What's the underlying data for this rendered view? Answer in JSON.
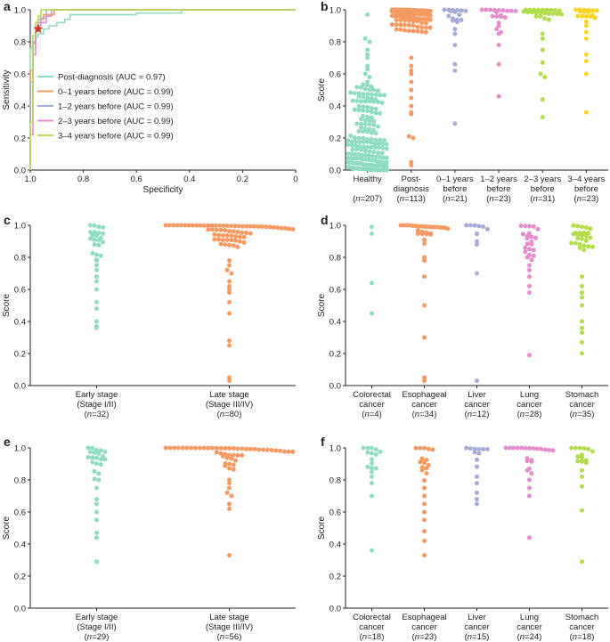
{
  "colors": {
    "teal": "#8fdcc0",
    "orange": "#f59a62",
    "lavender": "#a7acd6",
    "pink": "#e58ecd",
    "lime": "#b3dc4c",
    "yellow": "#fbd424",
    "star": "#d03a2a"
  },
  "chart_data": [
    {
      "id": "a",
      "panel_label": "a",
      "type": "line",
      "xlabel": "Specificity",
      "ylabel": "Sensitivity",
      "xlim": [
        1.0,
        0.0
      ],
      "ylim": [
        0.0,
        1.0
      ],
      "xticks": [
        "1.0",
        "0.8",
        "0.6",
        "0.4",
        "0.2",
        "0"
      ],
      "yticks": [
        "0.0",
        "0.2",
        "0.4",
        "0.6",
        "0.8",
        "1.0"
      ],
      "marker": {
        "x": 0.97,
        "y": 0.88,
        "shape": "star"
      },
      "series": [
        {
          "name": "Post-diagnosis (AUC = 0.97)",
          "color": "teal",
          "points": [
            [
              1,
              0
            ],
            [
              1,
              0.76
            ],
            [
              0.99,
              0.77
            ],
            [
              0.99,
              0.8
            ],
            [
              0.98,
              0.8
            ],
            [
              0.98,
              0.83
            ],
            [
              0.97,
              0.83
            ],
            [
              0.97,
              0.85
            ],
            [
              0.95,
              0.85
            ],
            [
              0.95,
              0.88
            ],
            [
              0.93,
              0.88
            ],
            [
              0.93,
              0.9
            ],
            [
              0.9,
              0.9
            ],
            [
              0.9,
              0.92
            ],
            [
              0.87,
              0.92
            ],
            [
              0.87,
              0.94
            ],
            [
              0.85,
              0.94
            ],
            [
              0.85,
              0.97
            ],
            [
              0.6,
              0.97
            ],
            [
              0.6,
              0.98
            ],
            [
              0.43,
              0.98
            ],
            [
              0.43,
              1
            ],
            [
              0,
              1
            ]
          ]
        },
        {
          "name": "0–1 years before (AUC = 0.99)",
          "color": "orange",
          "points": [
            [
              1,
              0
            ],
            [
              1,
              0.62
            ],
            [
              0.99,
              0.62
            ],
            [
              0.99,
              0.79
            ],
            [
              0.98,
              0.79
            ],
            [
              0.98,
              0.88
            ],
            [
              0.97,
              0.88
            ],
            [
              0.97,
              0.94
            ],
            [
              0.95,
              0.94
            ],
            [
              0.95,
              0.97
            ],
            [
              0.91,
              0.97
            ],
            [
              0.91,
              1
            ],
            [
              0,
              1
            ]
          ]
        },
        {
          "name": "1–2 years before (AUC = 0.99)",
          "color": "lavender",
          "points": [
            [
              1,
              0
            ],
            [
              1,
              0.55
            ],
            [
              0.99,
              0.55
            ],
            [
              0.99,
              0.8
            ],
            [
              0.98,
              0.8
            ],
            [
              0.98,
              0.9
            ],
            [
              0.96,
              0.9
            ],
            [
              0.96,
              0.95
            ],
            [
              0.94,
              0.95
            ],
            [
              0.94,
              1
            ],
            [
              0,
              1
            ]
          ]
        },
        {
          "name": "2–3 years before (AUC = 0.99)",
          "color": "pink",
          "points": [
            [
              1,
              0
            ],
            [
              1,
              0.22
            ],
            [
              0.99,
              0.22
            ],
            [
              0.99,
              0.72
            ],
            [
              0.98,
              0.72
            ],
            [
              0.98,
              0.88
            ],
            [
              0.97,
              0.88
            ],
            [
              0.97,
              0.92
            ],
            [
              0.94,
              0.92
            ],
            [
              0.94,
              0.96
            ],
            [
              0.92,
              0.96
            ],
            [
              0.92,
              1
            ],
            [
              0,
              1
            ]
          ]
        },
        {
          "name": "3–4 years before (AUC = 0.99)",
          "color": "lime",
          "points": [
            [
              1,
              0
            ],
            [
              1,
              0.3
            ],
            [
              0.99,
              0.3
            ],
            [
              0.99,
              0.84
            ],
            [
              0.98,
              0.84
            ],
            [
              0.98,
              0.92
            ],
            [
              0.97,
              0.92
            ],
            [
              0.97,
              0.96
            ],
            [
              0.96,
              0.96
            ],
            [
              0.96,
              1
            ],
            [
              0,
              1
            ]
          ]
        }
      ]
    },
    {
      "id": "b",
      "panel_label": "b",
      "type": "scatter",
      "ylabel": "Score",
      "ylim": [
        0,
        1.0
      ],
      "yticks": [
        "0.0",
        "0.2",
        "0.4",
        "0.6",
        "0.8",
        "1.0"
      ],
      "groups": [
        {
          "label1": "Healthy",
          "label2": "",
          "n": "(n=207)",
          "color": "teal",
          "count": 207,
          "dist": "low",
          "lows": [
            0.97,
            0.82,
            0.8,
            0.75,
            0.72,
            0.7,
            0.65,
            0.63,
            0.6,
            0.58,
            0.55,
            0.52,
            0.5,
            0.48,
            0.45,
            0.42
          ]
        },
        {
          "label1": "Post-",
          "label2": "diagnosis",
          "n": "(n=113)",
          "color": "orange",
          "count": 113,
          "dist": "high",
          "lows": [
            0.03,
            0.05,
            0.2,
            0.21,
            0.35,
            0.36,
            0.4,
            0.45,
            0.5,
            0.55,
            0.6,
            0.62,
            0.65,
            0.7
          ]
        },
        {
          "label1": "0–1 years",
          "label2": "before",
          "n": "(n=21)",
          "color": "lavender",
          "count": 21,
          "dist": "high",
          "lows": [
            0.29,
            0.62,
            0.66,
            0.78,
            0.85,
            0.88
          ]
        },
        {
          "label1": "1–2 years",
          "label2": "before",
          "n": "(n=23)",
          "color": "pink",
          "count": 23,
          "dist": "high",
          "lows": [
            0.46,
            0.66,
            0.78,
            0.85,
            0.88,
            0.9
          ]
        },
        {
          "label1": "2–3 years",
          "label2": "before",
          "n": "(n=31)",
          "color": "lime",
          "count": 31,
          "dist": "high",
          "lows": [
            0.33,
            0.44,
            0.58,
            0.6,
            0.67,
            0.75,
            0.82,
            0.85
          ]
        },
        {
          "label1": "3–4 years",
          "label2": "before",
          "n": "(n=23)",
          "color": "yellow",
          "count": 23,
          "dist": "high",
          "lows": [
            0.36,
            0.6,
            0.68,
            0.72,
            0.82,
            0.86
          ]
        }
      ]
    },
    {
      "id": "c",
      "panel_label": "c",
      "type": "scatter",
      "ylabel": "Score",
      "ylim": [
        0,
        1.0
      ],
      "yticks": [
        "0.0",
        "0.2",
        "0.4",
        "0.6",
        "0.8",
        "1.0"
      ],
      "groups": [
        {
          "label1": "Early stage",
          "label2": "(Stage I/II)",
          "n": "(n=32)",
          "color": "teal",
          "count": 32,
          "dist": "mid",
          "lows": [
            0.36,
            0.37,
            0.4,
            0.48,
            0.52,
            0.6,
            0.65,
            0.68,
            0.72,
            0.75,
            0.78
          ]
        },
        {
          "label1": "Late stage",
          "label2": "(Stage III/IV)",
          "n": "(n=80)",
          "color": "orange",
          "count": 80,
          "dist": "high",
          "lows": [
            0.03,
            0.05,
            0.25,
            0.28,
            0.45,
            0.52,
            0.58,
            0.6,
            0.62,
            0.65,
            0.7,
            0.72,
            0.75,
            0.78
          ]
        }
      ]
    },
    {
      "id": "d",
      "panel_label": "d",
      "type": "scatter",
      "ylabel": "Score",
      "ylim": [
        0,
        1.0
      ],
      "yticks": [
        "0.0",
        "0.2",
        "0.4",
        "0.6",
        "0.8",
        "1.0"
      ],
      "groups": [
        {
          "label1": "Colorectal",
          "label2": "cancer",
          "n": "(n=4)",
          "color": "teal",
          "count": 4,
          "dist": "high",
          "lows": [
            0.45,
            0.64,
            0.99
          ]
        },
        {
          "label1": "Esophageal",
          "label2": "cancer",
          "n": "(n=34)",
          "color": "orange",
          "count": 34,
          "dist": "high",
          "lows": [
            0.03,
            0.05,
            0.3,
            0.5,
            0.68,
            0.78,
            0.8
          ]
        },
        {
          "label1": "Liver",
          "label2": "cancer",
          "n": "(n=12)",
          "color": "lavender",
          "count": 12,
          "dist": "high",
          "lows": [
            0.03,
            0.7,
            0.88,
            0.9
          ]
        },
        {
          "label1": "Lung",
          "label2": "cancer",
          "n": "(n=28)",
          "color": "pink",
          "count": 28,
          "dist": "mid",
          "lows": [
            0.19,
            0.58,
            0.62,
            0.68,
            0.72,
            0.75,
            0.8
          ]
        },
        {
          "label1": "Stomach",
          "label2": "cancer",
          "n": "(n=35)",
          "color": "lime",
          "count": 35,
          "dist": "mid",
          "lows": [
            0.2,
            0.27,
            0.33,
            0.36,
            0.4,
            0.5,
            0.55,
            0.58,
            0.62,
            0.68
          ]
        }
      ]
    },
    {
      "id": "e",
      "panel_label": "e",
      "type": "scatter",
      "ylabel": "Score",
      "ylim": [
        0,
        1.0
      ],
      "yticks": [
        "0.0",
        "0.2",
        "0.4",
        "0.6",
        "0.8",
        "1.0"
      ],
      "groups": [
        {
          "label1": "Early stage",
          "label2": "(Stage I/II)",
          "n": "(n=29)",
          "color": "teal",
          "count": 29,
          "dist": "mid",
          "lows": [
            0.29,
            0.44,
            0.47,
            0.55,
            0.6,
            0.65,
            0.68,
            0.75,
            0.8
          ]
        },
        {
          "label1": "Late stage",
          "label2": "(Stage III/IV)",
          "n": "(n=56)",
          "color": "orange",
          "count": 56,
          "dist": "high",
          "lows": [
            0.33,
            0.62,
            0.65,
            0.7,
            0.72,
            0.75,
            0.78,
            0.8
          ]
        }
      ]
    },
    {
      "id": "f",
      "panel_label": "f",
      "type": "scatter",
      "ylabel": "Score",
      "ylim": [
        0,
        1.0
      ],
      "yticks": [
        "0.0",
        "0.2",
        "0.4",
        "0.6",
        "0.8",
        "1.0"
      ],
      "groups": [
        {
          "label1": "Colorectal",
          "label2": "cancer",
          "n": "(n=18)",
          "color": "teal",
          "count": 18,
          "dist": "high",
          "lows": [
            0.36,
            0.7,
            0.78,
            0.82,
            0.85
          ]
        },
        {
          "label1": "Esophageal",
          "label2": "cancer",
          "n": "(n=23)",
          "color": "orange",
          "count": 23,
          "dist": "mid",
          "lows": [
            0.33,
            0.42,
            0.48,
            0.55,
            0.6,
            0.65,
            0.7,
            0.75
          ]
        },
        {
          "label1": "Liver",
          "label2": "cancer",
          "n": "(n=15)",
          "color": "lavender",
          "count": 15,
          "dist": "high",
          "lows": [
            0.65,
            0.68,
            0.72,
            0.78,
            0.82
          ]
        },
        {
          "label1": "Lung",
          "label2": "cancer",
          "n": "(n=24)",
          "color": "pink",
          "count": 24,
          "dist": "high",
          "lows": [
            0.44,
            0.7,
            0.75,
            0.8,
            0.84,
            0.86
          ]
        },
        {
          "label1": "Stomach",
          "label2": "cancer",
          "n": "(n=18)",
          "color": "lime",
          "count": 18,
          "dist": "high",
          "lows": [
            0.29,
            0.61,
            0.76,
            0.82,
            0.86
          ]
        }
      ]
    }
  ]
}
